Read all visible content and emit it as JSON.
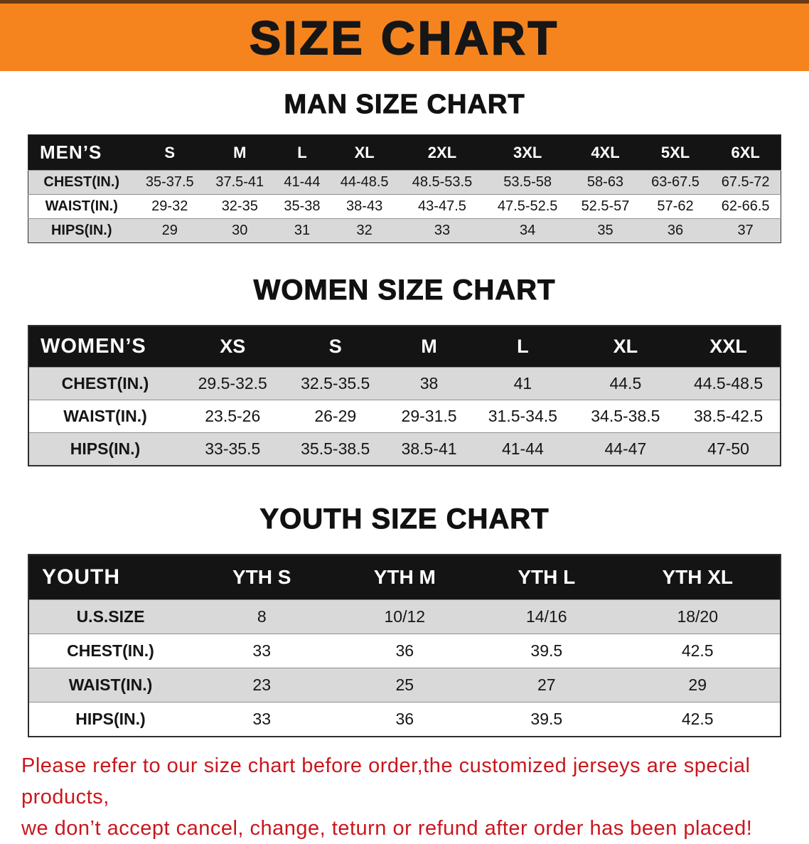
{
  "banner": {
    "title": "SIZE CHART",
    "bg_color": "#f6841e"
  },
  "sections": [
    {
      "id": "men",
      "heading": "MAN SIZE CHART",
      "table": {
        "header_label": "MEN’S",
        "columns": [
          "S",
          "M",
          "L",
          "XL",
          "2XL",
          "3XL",
          "4XL",
          "5XL",
          "6XL"
        ],
        "rows": [
          {
            "label": "CHEST(IN.)",
            "values": [
              "35-37.5",
              "37.5-41",
              "41-44",
              "44-48.5",
              "48.5-53.5",
              "53.5-58",
              "58-63",
              "63-67.5",
              "67.5-72"
            ]
          },
          {
            "label": "WAIST(IN.)",
            "values": [
              "29-32",
              "32-35",
              "35-38",
              "38-43",
              "43-47.5",
              "47.5-52.5",
              "52.5-57",
              "57-62",
              "62-66.5"
            ]
          },
          {
            "label": "HIPS(IN.)",
            "values": [
              "29",
              "30",
              "31",
              "32",
              "33",
              "34",
              "35",
              "36",
              "37"
            ]
          }
        ]
      }
    },
    {
      "id": "women",
      "heading": "WOMEN SIZE CHART",
      "table": {
        "header_label": "WOMEN’S",
        "columns": [
          "XS",
          "S",
          "M",
          "L",
          "XL",
          "XXL"
        ],
        "rows": [
          {
            "label": "CHEST(IN.)",
            "values": [
              "29.5-32.5",
              "32.5-35.5",
              "38",
              "41",
              "44.5",
              "44.5-48.5"
            ]
          },
          {
            "label": "WAIST(IN.)",
            "values": [
              "23.5-26",
              "26-29",
              "29-31.5",
              "31.5-34.5",
              "34.5-38.5",
              "38.5-42.5"
            ]
          },
          {
            "label": "HIPS(IN.)",
            "values": [
              "33-35.5",
              "35.5-38.5",
              "38.5-41",
              "41-44",
              "44-47",
              "47-50"
            ]
          }
        ]
      }
    },
    {
      "id": "youth",
      "heading": "YOUTH SIZE CHART",
      "table": {
        "header_label": "YOUTH",
        "columns": [
          "YTH S",
          "YTH M",
          "YTH L",
          "YTH XL"
        ],
        "rows": [
          {
            "label": "U.S.SIZE",
            "values": [
              "8",
              "10/12",
              "14/16",
              "18/20"
            ]
          },
          {
            "label": "CHEST(IN.)",
            "values": [
              "33",
              "36",
              "39.5",
              "42.5"
            ]
          },
          {
            "label": "WAIST(IN.)",
            "values": [
              "23",
              "25",
              "27",
              "29"
            ]
          },
          {
            "label": "HIPS(IN.)",
            "values": [
              "33",
              "36",
              "39.5",
              "42.5"
            ]
          }
        ]
      }
    }
  ],
  "footer": {
    "line1": "Please refer to our size chart before order,the customized jerseys are special products,",
    "line2": "we don’t accept cancel, change, teturn or refund after order has been placed!"
  },
  "colors": {
    "banner_orange": "#f6841e",
    "banner_top_edge": "#6b3a12",
    "table_header_black": "#141414",
    "row_shade_gray": "#d9d9d9",
    "notice_red": "#c9171e"
  }
}
